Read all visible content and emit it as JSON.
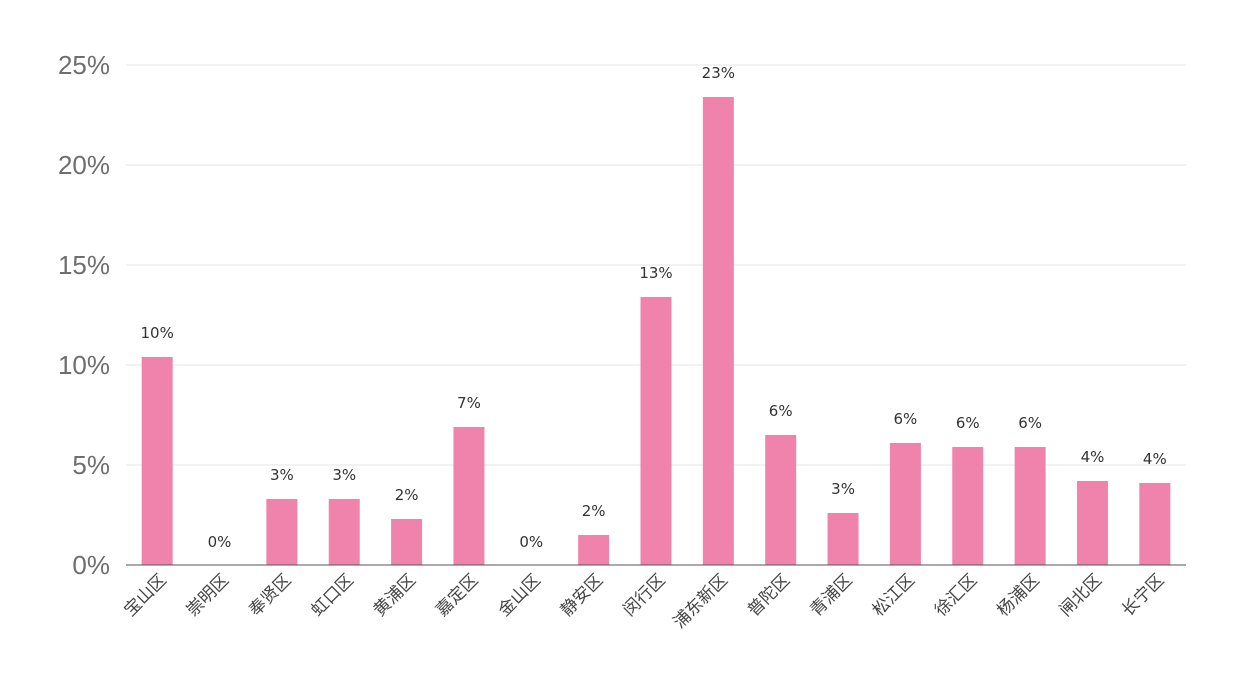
{
  "chart_data": {
    "type": "bar",
    "categories": [
      "宝山区",
      "崇明区",
      "奉贤区",
      "虹口区",
      "黄浦区",
      "嘉定区",
      "金山区",
      "静安区",
      "闵行区",
      "浦东新区",
      "普陀区",
      "青浦区",
      "松江区",
      "徐汇区",
      "杨浦区",
      "闸北区",
      "长宁区"
    ],
    "values": [
      10.4,
      0,
      3.3,
      3.3,
      2.3,
      6.9,
      0,
      1.5,
      13.4,
      23.4,
      6.5,
      2.6,
      6.1,
      5.9,
      5.9,
      4.2,
      4.1
    ],
    "data_labels": [
      "10%",
      "0%",
      "3%",
      "3%",
      "2%",
      "7%",
      "0%",
      "2%",
      "13%",
      "23%",
      "6%",
      "3%",
      "6%",
      "6%",
      "6%",
      "4%",
      "4%"
    ],
    "ylim": [
      0,
      25
    ],
    "yticks": [
      0,
      5,
      10,
      15,
      20,
      25
    ],
    "ytick_labels": [
      "0%",
      "5%",
      "10%",
      "15%",
      "20%",
      "25%"
    ],
    "bar_color": "#f083ac",
    "grid": true,
    "legend": "none"
  }
}
